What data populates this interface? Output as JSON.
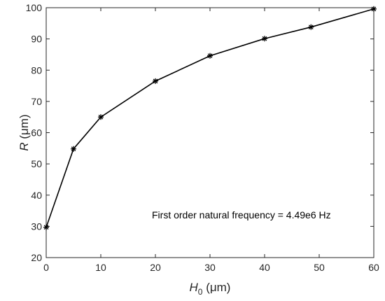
{
  "chart_data": {
    "type": "line",
    "title": "",
    "xlabel": {
      "symbol": "H",
      "subscript": "0",
      "unit": " (μm)"
    },
    "ylabel": {
      "symbol": "R",
      "unit": " (μm)"
    },
    "xlim": [
      0,
      60
    ],
    "ylim": [
      20,
      100
    ],
    "xticks": [
      0,
      10,
      20,
      30,
      40,
      50,
      60
    ],
    "yticks": [
      20,
      30,
      40,
      50,
      60,
      70,
      80,
      90,
      100
    ],
    "grid": false,
    "box": true,
    "series": [
      {
        "x": [
          0,
          5,
          10,
          20,
          30,
          40,
          48.5,
          60
        ],
        "y": [
          29.7,
          54.8,
          65,
          76.5,
          84.6,
          90.1,
          93.8,
          99.6
        ],
        "color": "#000000",
        "marker": "asterisk"
      }
    ],
    "annotation": "First order natural frequency = 4.49e6 Hz"
  }
}
